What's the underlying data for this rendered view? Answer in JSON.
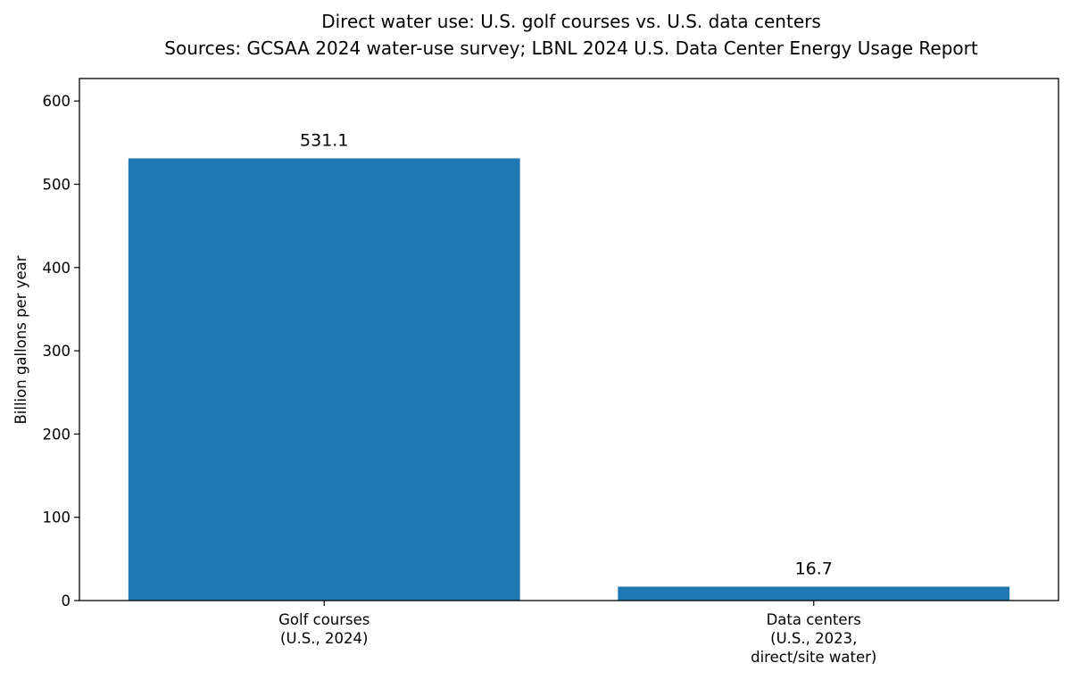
{
  "chart_data": {
    "type": "bar",
    "title": "Direct water use: U.S. golf courses vs. U.S. data centers",
    "subtitle": "Sources: GCSAA 2024 water-use survey; LBNL 2024 U.S. Data Center Energy Usage Report",
    "xlabel": "",
    "ylabel": "Billion gallons per year",
    "categories": [
      [
        "Golf courses",
        "(U.S., 2024)"
      ],
      [
        "Data centers",
        "(U.S., 2023,",
        "direct/site water)"
      ]
    ],
    "values": [
      531.1,
      16.7
    ],
    "value_labels": [
      "531.1",
      "16.7"
    ],
    "ylim": [
      0,
      627
    ],
    "yticks": [
      0,
      100,
      200,
      300,
      400,
      500,
      600
    ],
    "bar_color": "#1f77b4",
    "grid": false,
    "legend": "none"
  }
}
